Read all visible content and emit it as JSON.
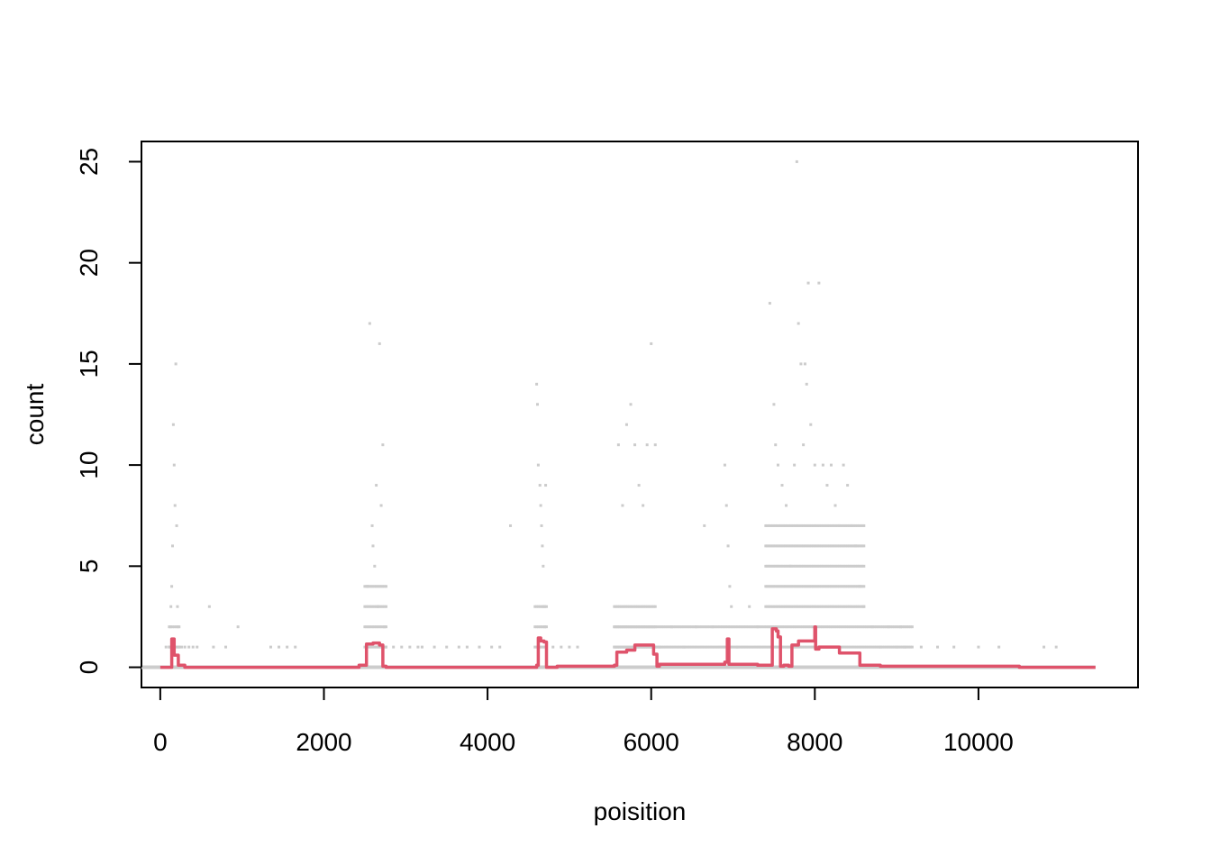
{
  "chart_data": {
    "type": "scatter",
    "title": "",
    "xlabel": "poisition",
    "ylabel": "count",
    "xlim": [
      -230,
      11950
    ],
    "ylim": [
      -1.0,
      26.0
    ],
    "x_ticks": [
      0,
      2000,
      4000,
      6000,
      8000,
      10000
    ],
    "x_tick_labels": [
      "0",
      "2000",
      "4000",
      "6000",
      "8000",
      "10000"
    ],
    "y_ticks": [
      0,
      5,
      10,
      15,
      20,
      25
    ],
    "y_tick_labels": [
      "0",
      "5",
      "10",
      "15",
      "20",
      "25"
    ],
    "grid": false,
    "colors": {
      "points": "#cccccc",
      "line": "#df536b",
      "frame": "#000000"
    },
    "series": [
      {
        "kind": "points",
        "points": [
          [
            70,
            1
          ],
          [
            110,
            1
          ],
          [
            120,
            2
          ],
          [
            130,
            3
          ],
          [
            140,
            4
          ],
          [
            150,
            6
          ],
          [
            160,
            12
          ],
          [
            170,
            10
          ],
          [
            180,
            8
          ],
          [
            190,
            15
          ],
          [
            200,
            7
          ],
          [
            210,
            3
          ],
          [
            220,
            2
          ],
          [
            230,
            1
          ],
          [
            260,
            1
          ],
          [
            300,
            1
          ],
          [
            350,
            1
          ],
          [
            400,
            1
          ],
          [
            450,
            1
          ],
          [
            600,
            3
          ],
          [
            650,
            1
          ],
          [
            800,
            1
          ],
          [
            950,
            2
          ],
          [
            1350,
            1
          ],
          [
            1450,
            1
          ],
          [
            1550,
            1
          ],
          [
            1650,
            1
          ],
          [
            2530,
            4
          ],
          [
            2560,
            17
          ],
          [
            2590,
            7
          ],
          [
            2600,
            6
          ],
          [
            2620,
            5
          ],
          [
            2640,
            9
          ],
          [
            2660,
            3
          ],
          [
            2680,
            16
          ],
          [
            2700,
            8
          ],
          [
            2720,
            11
          ],
          [
            2740,
            2
          ],
          [
            2760,
            1
          ],
          [
            2850,
            1
          ],
          [
            2950,
            1
          ],
          [
            3050,
            1
          ],
          [
            3150,
            1
          ],
          [
            3200,
            1
          ],
          [
            3350,
            1
          ],
          [
            3500,
            1
          ],
          [
            3650,
            1
          ],
          [
            3750,
            1
          ],
          [
            3900,
            1
          ],
          [
            4050,
            1
          ],
          [
            4150,
            1
          ],
          [
            4280,
            7
          ],
          [
            4600,
            14
          ],
          [
            4610,
            13
          ],
          [
            4620,
            10
          ],
          [
            4640,
            9
          ],
          [
            4650,
            8
          ],
          [
            4660,
            7
          ],
          [
            4670,
            6
          ],
          [
            4680,
            5
          ],
          [
            4690,
            3
          ],
          [
            4700,
            2
          ],
          [
            4710,
            9
          ],
          [
            4800,
            1
          ],
          [
            4900,
            1
          ],
          [
            5000,
            1
          ],
          [
            5100,
            1
          ],
          [
            5600,
            11
          ],
          [
            5650,
            8
          ],
          [
            5700,
            12
          ],
          [
            5750,
            13
          ],
          [
            5800,
            11
          ],
          [
            5850,
            9
          ],
          [
            5900,
            8
          ],
          [
            5950,
            11
          ],
          [
            6000,
            16
          ],
          [
            6050,
            11
          ],
          [
            6100,
            1
          ],
          [
            6250,
            2
          ],
          [
            6400,
            1
          ],
          [
            6550,
            2
          ],
          [
            6650,
            7
          ],
          [
            6750,
            2
          ],
          [
            6900,
            10
          ],
          [
            6920,
            8
          ],
          [
            6940,
            6
          ],
          [
            6960,
            4
          ],
          [
            6980,
            3
          ],
          [
            7050,
            1
          ],
          [
            7200,
            3
          ],
          [
            7300,
            2
          ],
          [
            7450,
            18
          ],
          [
            7500,
            13
          ],
          [
            7520,
            11
          ],
          [
            7550,
            10
          ],
          [
            7600,
            9
          ],
          [
            7650,
            8
          ],
          [
            7700,
            5
          ],
          [
            7750,
            10
          ],
          [
            7780,
            25
          ],
          [
            7800,
            17
          ],
          [
            7830,
            15
          ],
          [
            7860,
            11
          ],
          [
            7880,
            15
          ],
          [
            7900,
            14
          ],
          [
            7920,
            19
          ],
          [
            7950,
            12
          ],
          [
            8000,
            10
          ],
          [
            8050,
            19
          ],
          [
            8100,
            10
          ],
          [
            8150,
            9
          ],
          [
            8200,
            10
          ],
          [
            8250,
            8
          ],
          [
            8300,
            7
          ],
          [
            8350,
            10
          ],
          [
            8400,
            9
          ],
          [
            8450,
            7
          ],
          [
            8500,
            6
          ],
          [
            8550,
            4
          ],
          [
            8600,
            3
          ],
          [
            8700,
            2
          ],
          [
            8800,
            1
          ],
          [
            8900,
            2
          ],
          [
            9000,
            1
          ],
          [
            9050,
            2
          ],
          [
            9100,
            1
          ],
          [
            9300,
            1
          ],
          [
            9500,
            1
          ],
          [
            9700,
            1
          ],
          [
            10000,
            1
          ],
          [
            10250,
            1
          ],
          [
            10800,
            1
          ],
          [
            10950,
            1
          ]
        ],
        "bands": [
          [
            [
              110,
              230
            ],
            [
              1,
              2
            ]
          ],
          [
            [
              2500,
              2760
            ],
            [
              1,
              4
            ]
          ],
          [
            [
              4580,
              4720
            ],
            [
              1,
              3
            ]
          ],
          [
            [
              5550,
              6050
            ],
            [
              1,
              3
            ]
          ],
          [
            [
              5550,
              9200
            ],
            [
              1,
              2
            ]
          ],
          [
            [
              7400,
              8600
            ],
            [
              3,
              7
            ]
          ]
        ]
      },
      {
        "kind": "step-line",
        "name": "",
        "values": [
          [
            0,
            0
          ],
          [
            110,
            0
          ],
          [
            140,
            1.4
          ],
          [
            170,
            0.6
          ],
          [
            200,
            0.6
          ],
          [
            220,
            0.1
          ],
          [
            300,
            0
          ],
          [
            1600,
            0
          ],
          [
            2400,
            0
          ],
          [
            2430,
            0.1
          ],
          [
            2500,
            0.1
          ],
          [
            2520,
            1.15
          ],
          [
            2600,
            1.2
          ],
          [
            2680,
            1.1
          ],
          [
            2720,
            0.05
          ],
          [
            2760,
            0
          ],
          [
            4550,
            0
          ],
          [
            4600,
            0.1
          ],
          [
            4620,
            1.45
          ],
          [
            4650,
            1.3
          ],
          [
            4690,
            1.25
          ],
          [
            4720,
            0
          ],
          [
            4800,
            0
          ],
          [
            4850,
            0.05
          ],
          [
            5500,
            0.05
          ],
          [
            5550,
            0.1
          ],
          [
            5580,
            0.75
          ],
          [
            5700,
            0.85
          ],
          [
            5800,
            1.1
          ],
          [
            6000,
            1.1
          ],
          [
            6030,
            0.65
          ],
          [
            6070,
            0.05
          ],
          [
            6100,
            0.15
          ],
          [
            6800,
            0.15
          ],
          [
            6900,
            0.25
          ],
          [
            6930,
            1.4
          ],
          [
            6950,
            0.15
          ],
          [
            7300,
            0.1
          ],
          [
            7400,
            0.1
          ],
          [
            7480,
            1.9
          ],
          [
            7530,
            1.8
          ],
          [
            7550,
            1.5
          ],
          [
            7580,
            0.05
          ],
          [
            7620,
            0.1
          ],
          [
            7680,
            0.05
          ],
          [
            7720,
            1.1
          ],
          [
            7800,
            1.3
          ],
          [
            7950,
            1.3
          ],
          [
            8000,
            2.0
          ],
          [
            8010,
            0.9
          ],
          [
            8050,
            1.0
          ],
          [
            8300,
            0.7
          ],
          [
            8550,
            0.1
          ],
          [
            8800,
            0.05
          ],
          [
            9200,
            0.05
          ],
          [
            9800,
            0.05
          ],
          [
            10500,
            0
          ],
          [
            11430,
            0
          ]
        ]
      }
    ]
  }
}
